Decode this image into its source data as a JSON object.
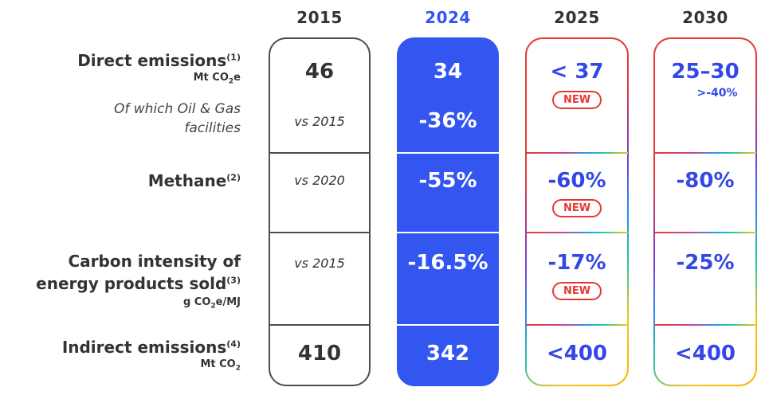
{
  "years": [
    "2015",
    "2024",
    "2025",
    "2030"
  ],
  "colors": {
    "2015": "#4d4d4d",
    "2024": "#3355f0",
    "value_blue": "#3347e6",
    "new_badge": "#e53935"
  },
  "labels": {
    "direct": {
      "title": "Direct emissions",
      "sup": "(1)",
      "unit_pre": "Mt CO",
      "unit_sub": "2",
      "unit_post": "e"
    },
    "oilgas": {
      "line1": "Of which Oil & Gas",
      "line2": "facilities"
    },
    "methane": {
      "title": "Methane",
      "sup": "(2)"
    },
    "carbon": {
      "line1": "Carbon intensity of",
      "line2": "energy products sold",
      "sup": "(3)",
      "unit_pre": "g CO",
      "unit_sub": "2",
      "unit_post": "e/MJ"
    },
    "indirect": {
      "title": "Indirect emissions",
      "sup": "(4)",
      "unit_pre": "Mt CO",
      "unit_sub": "2"
    }
  },
  "col2015": {
    "direct": "46",
    "oilgas": "vs 2015",
    "methane": "vs 2020",
    "carbon": "vs 2015",
    "indirect": "410"
  },
  "col2024": {
    "direct": "34",
    "oilgas": "-36%",
    "methane": "-55%",
    "carbon": "-16.5%",
    "indirect": "342"
  },
  "col2025": {
    "direct": "< 37",
    "methane": "-60%",
    "carbon": "-17%",
    "indirect": "<400",
    "badge": "NEW"
  },
  "col2030": {
    "direct": "25–30",
    "direct_note": ">-40%",
    "methane": "-80%",
    "carbon": "-25%",
    "indirect": "<400"
  }
}
